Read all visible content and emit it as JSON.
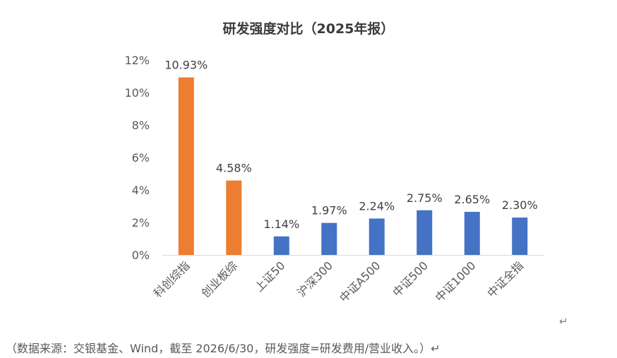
{
  "chart_data": {
    "type": "bar",
    "title": "研发强度对比（2025年报）",
    "categories": [
      "科创综指",
      "创业板综",
      "上证50",
      "沪深300",
      "中证A500",
      "中证500",
      "中证1000",
      "中证全指"
    ],
    "values": [
      10.93,
      4.58,
      1.14,
      1.97,
      2.24,
      2.75,
      2.65,
      2.3
    ],
    "data_labels": [
      "10.93%",
      "4.58%",
      "1.14%",
      "1.97%",
      "2.24%",
      "2.75%",
      "2.65%",
      "2.30%"
    ],
    "bar_colors": [
      "#ED7D31",
      "#ED7D31",
      "#4472C4",
      "#4472C4",
      "#4472C4",
      "#4472C4",
      "#4472C4",
      "#4472C4"
    ],
    "yticks": [
      0,
      2,
      4,
      6,
      8,
      10,
      12
    ],
    "ytick_labels": [
      "0%",
      "2%",
      "4%",
      "6%",
      "8%",
      "10%",
      "12%"
    ],
    "ylim": [
      0,
      12
    ],
    "xlabel": "",
    "ylabel": "",
    "grid": false,
    "legend": "none"
  },
  "source_note": "（数据来源：交银基金、Wind，截至 2026/6/30，研发强度=研发费用/营业收入。）↵",
  "return_mark": "↵"
}
